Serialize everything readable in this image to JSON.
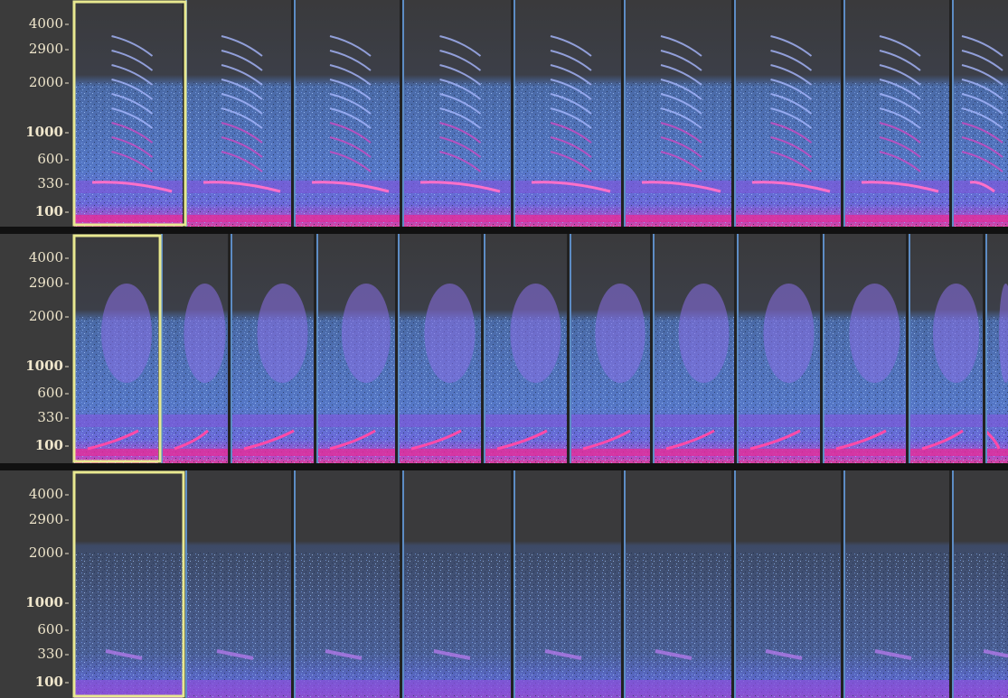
{
  "tracks": [
    {
      "freq_labels": [
        "4000",
        "2900",
        "2000",
        "1000",
        "600",
        "330",
        "100"
      ]
    },
    {
      "freq_labels": [
        "4000",
        "2900",
        "2000",
        "1000",
        "600",
        "330",
        "100"
      ]
    },
    {
      "freq_labels": [
        "4000",
        "2900",
        "2000",
        "1000",
        "600",
        "330",
        "100"
      ]
    }
  ]
}
